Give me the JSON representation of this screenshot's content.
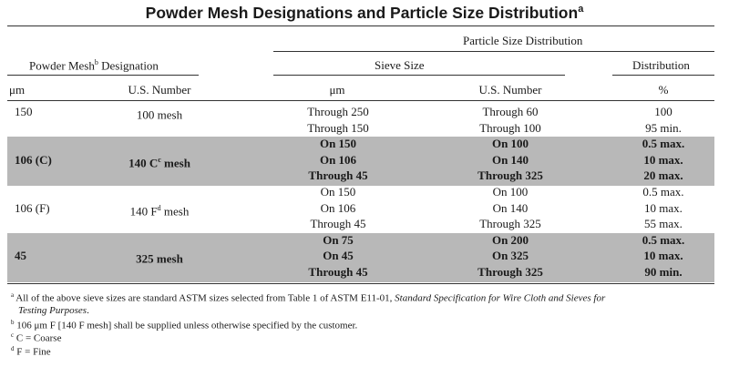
{
  "title": {
    "text": "Powder Mesh Designations and Particle Size Distribution",
    "sup": "a"
  },
  "header": {
    "group_main": "Particle Size Distribution",
    "powder_mesh_pre": "Powder Mesh",
    "powder_mesh_sup": "b",
    "powder_mesh_post": " Designation",
    "sieve_size": "Sieve Size",
    "distribution": "Distribution",
    "col_um": "μm",
    "col_us": "U.S. Number",
    "col_sieve_um": "μm",
    "col_sieve_us": "U.S. Number",
    "col_pct": "%"
  },
  "rows": [
    {
      "um": "150",
      "us_pre": "100 mesh",
      "us_sup": "",
      "us_post": "",
      "sieve_um": "Through 250",
      "sieve_us": "Through 60",
      "dist": "100",
      "shaded": false
    },
    {
      "um": "",
      "us_pre": "",
      "us_sup": "",
      "us_post": "",
      "sieve_um": "Through 150",
      "sieve_us": "Through 100",
      "dist": "95 min.",
      "shaded": false
    },
    {
      "um": "",
      "us_pre": "",
      "us_sup": "",
      "us_post": "",
      "sieve_um": "On 150",
      "sieve_us": "On 100",
      "dist": "0.5 max.",
      "shaded": true
    },
    {
      "um": "106 (C)",
      "us_pre": "140 C",
      "us_sup": "c",
      "us_post": " mesh",
      "sieve_um": "On 106",
      "sieve_us": "On 140",
      "dist": "10 max.",
      "shaded": true
    },
    {
      "um": "",
      "us_pre": "",
      "us_sup": "",
      "us_post": "",
      "sieve_um": "Through 45",
      "sieve_us": "Through 325",
      "dist": "20 max.",
      "shaded": true
    },
    {
      "um": "",
      "us_pre": "",
      "us_sup": "",
      "us_post": "",
      "sieve_um": "On 150",
      "sieve_us": "On 100",
      "dist": "0.5 max.",
      "shaded": false
    },
    {
      "um": "106 (F)",
      "us_pre": "140 F",
      "us_sup": "d",
      "us_post": " mesh",
      "sieve_um": "On 106",
      "sieve_us": "On 140",
      "dist": "10 max.",
      "shaded": false
    },
    {
      "um": "",
      "us_pre": "",
      "us_sup": "",
      "us_post": "",
      "sieve_um": "Through 45",
      "sieve_us": "Through 325",
      "dist": "55 max.",
      "shaded": false
    },
    {
      "um": "",
      "us_pre": "",
      "us_sup": "",
      "us_post": "",
      "sieve_um": "On 75",
      "sieve_us": "On 200",
      "dist": "0.5 max.",
      "shaded": true
    },
    {
      "um": "45",
      "us_pre": "325 mesh",
      "us_sup": "",
      "us_post": "",
      "sieve_um": "On 45",
      "sieve_us": "On 325",
      "dist": "10 max.",
      "shaded": true
    },
    {
      "um": "",
      "us_pre": "",
      "us_sup": "",
      "us_post": "",
      "sieve_um": "Through 45",
      "sieve_us": "Through 325",
      "dist": "90 min.",
      "shaded": true
    }
  ],
  "footnotes": [
    {
      "mark": "a",
      "text": "All of the above sieve sizes are standard ASTM sizes selected from Table 1 of ASTM E11-01, ",
      "italic": "Standard Specification for Wire Cloth and Sieves for",
      "cont_italic": "Testing Purposes",
      "cont": "."
    },
    {
      "mark": "b",
      "text": "106 μm F [140 F mesh] shall be supplied unless otherwise specified by the customer.",
      "italic": "",
      "cont_italic": "",
      "cont": ""
    },
    {
      "mark": "c",
      "text": "C = Coarse",
      "italic": "",
      "cont_italic": "",
      "cont": ""
    },
    {
      "mark": "d",
      "text": "F = Fine",
      "italic": "",
      "cont_italic": "",
      "cont": ""
    }
  ],
  "colors": {
    "band": "#b8b8b8",
    "text": "#1a1a1a",
    "rule": "#333333"
  }
}
